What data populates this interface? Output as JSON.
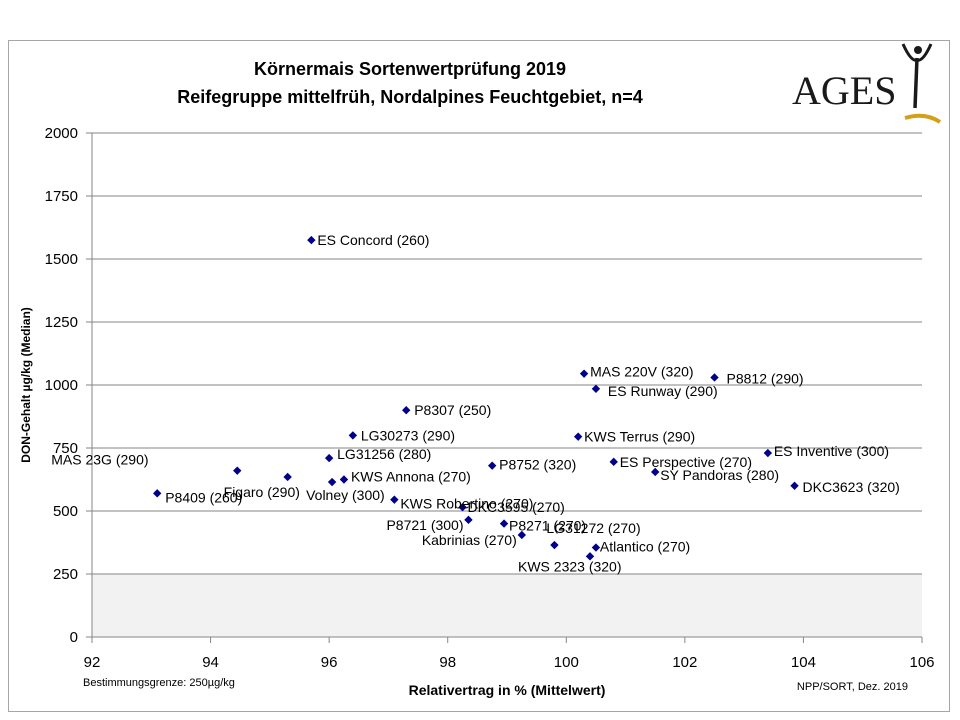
{
  "chart_data": {
    "type": "scatter",
    "title": "Körnermais Sortenwertprüfung 2019",
    "subtitle": "Reifegruppe mittelfrüh, Nordalpines Feuchtgebiet, n=4",
    "xlabel": "Relativertrag in % (Mittelwert)",
    "ylabel": "DON-Gehalt µg/kg (Median)",
    "xlim": [
      92,
      106
    ],
    "ylim": [
      0,
      2000
    ],
    "x_ticks": [
      "92",
      "94",
      "96",
      "98",
      "100",
      "102",
      "104",
      "106"
    ],
    "y_ticks": [
      "0",
      "250",
      "500",
      "750",
      "1000",
      "1250",
      "1500",
      "1750",
      "2000"
    ],
    "grid": true,
    "marker_color": "#00008b",
    "shaded_band": {
      "ymin": 0,
      "ymax": 250,
      "color": "#f2f2f2"
    },
    "points": [
      {
        "label": "ES Concord (260)",
        "x": 95.7,
        "y": 1575
      },
      {
        "label": "MAS 220V (320)",
        "x": 100.3,
        "y": 1045
      },
      {
        "label": "P8812 (290)",
        "x": 102.5,
        "y": 1030
      },
      {
        "label": "ES Runway (290)",
        "x": 100.5,
        "y": 985
      },
      {
        "label": "P8307 (250)",
        "x": 97.3,
        "y": 900
      },
      {
        "label": "LG30273 (290)",
        "x": 96.4,
        "y": 800
      },
      {
        "label": "KWS Terrus (290)",
        "x": 100.2,
        "y": 795
      },
      {
        "label": "ES Inventive (300)",
        "x": 103.4,
        "y": 730
      },
      {
        "label": "LG31256 (280)",
        "x": 96.0,
        "y": 710
      },
      {
        "label": "ES Perspective (270)",
        "x": 100.8,
        "y": 695
      },
      {
        "label": "P8752 (320)",
        "x": 98.75,
        "y": 680
      },
      {
        "label": "MAS 23G (290)",
        "x": 94.45,
        "y": 660
      },
      {
        "label": "SY Pandoras (280)",
        "x": 101.5,
        "y": 655
      },
      {
        "label": "Figaro (290)",
        "x": 95.3,
        "y": 635
      },
      {
        "label": "KWS Annona (270)",
        "x": 96.25,
        "y": 625
      },
      {
        "label": "Volney (300)",
        "x": 96.05,
        "y": 615
      },
      {
        "label": "DKC3623 (320)",
        "x": 103.85,
        "y": 600
      },
      {
        "label": "P8409 (260)",
        "x": 93.1,
        "y": 570
      },
      {
        "label": "KWS Robertino (270)",
        "x": 97.1,
        "y": 545
      },
      {
        "label": "DKC3595 (270)",
        "x": 98.25,
        "y": 515
      },
      {
        "label": "P8721 (300)",
        "x": 98.35,
        "y": 465
      },
      {
        "label": "P8271 (270)",
        "x": 98.95,
        "y": 450
      },
      {
        "label": "Kabrinias (270)",
        "x": 99.25,
        "y": 405
      },
      {
        "label": "LG31272 (270)",
        "x": 99.8,
        "y": 365
      },
      {
        "label": "Atlantico (270)",
        "x": 100.5,
        "y": 355
      },
      {
        "label": "KWS 2323 (320)",
        "x": 100.4,
        "y": 320
      }
    ]
  },
  "footnote_left": "Bestimmungsgrenze: 250µg/kg",
  "footnote_right": "NPP/SORT, Dez. 2019",
  "logo": {
    "text": "AGES",
    "color": "#1a1a1a",
    "accent": "#d4a017"
  }
}
